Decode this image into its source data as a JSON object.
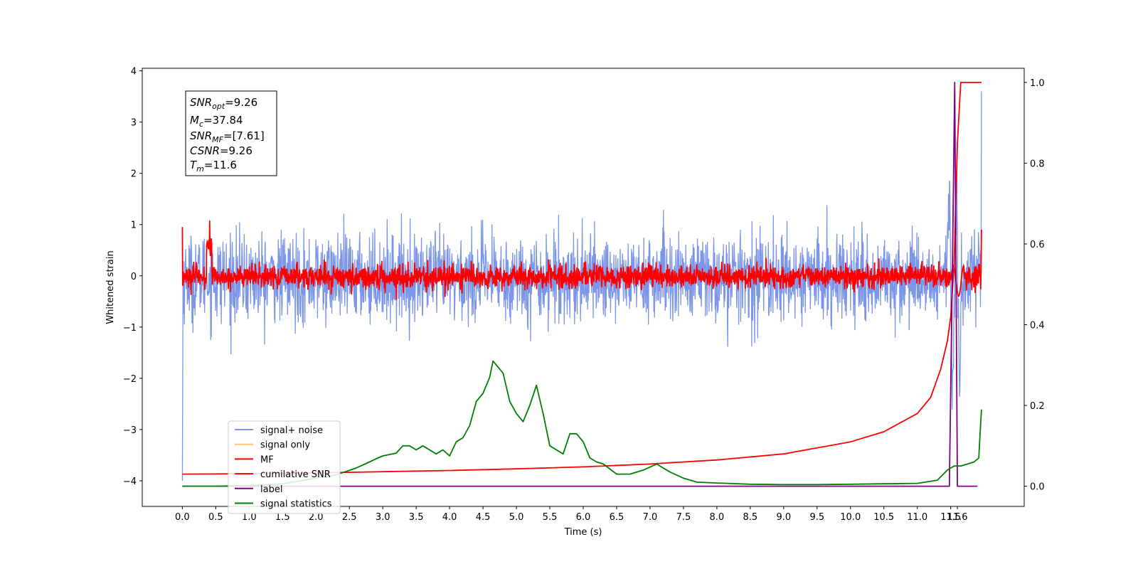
{
  "chart_data": {
    "type": "line",
    "xlabel": "Time (s)",
    "ylabel": "Whitened strain",
    "xlim": [
      -0.6,
      12.6
    ],
    "ylim": [
      -4.5,
      4.05
    ],
    "ylim_right": [
      -0.05,
      1.035
    ],
    "x_ticks": [
      "0.0",
      "0.5",
      "1.0",
      "1.5",
      "2.0",
      "2.5",
      "3.0",
      "3.5",
      "4.0",
      "4.5",
      "5.0",
      "5.5",
      "6.0",
      "6.5",
      "7.0",
      "7.5",
      "8.0",
      "8.5",
      "9.0",
      "9.5",
      "10.0",
      "10.5",
      "11.0",
      "11.5",
      "11.6"
    ],
    "y_ticks_left": [
      "4",
      "3",
      "2",
      "1",
      "0",
      "−1",
      "−2",
      "−3",
      "−4"
    ],
    "y_ticks_right": [
      "1.0",
      "0.8",
      "0.6",
      "0.4",
      "0.2",
      "0.0"
    ],
    "grid": false,
    "legend_position": "lower-left",
    "annotation": {
      "snr_opt": {
        "label": "SNR",
        "sub": "opt",
        "value": "=9.26"
      },
      "mc": {
        "label": "M",
        "sub": "c",
        "value": "=37.84"
      },
      "snr_mf": {
        "label": "SNR",
        "sub": "MF",
        "value": "=[7.61]"
      },
      "csnr": {
        "label": "CSNR",
        "value": "=9.26"
      },
      "tm": {
        "label": "T",
        "sub": "m",
        "value": "=11.6"
      }
    },
    "series": [
      {
        "name": "signal+ noise",
        "color": "#7b95e8",
        "axis": "left",
        "kind": "noise",
        "amplitude_std": 0.42,
        "end_spike": [
          11.55,
          1.8
        ]
      },
      {
        "name": "signal only",
        "color": "#f5c77e",
        "axis": "left",
        "values": []
      },
      {
        "name": "MF",
        "color": "#ff0000",
        "axis": "left",
        "kind": "noise",
        "amplitude_std": 0.11
      },
      {
        "name": "cumilative SNR",
        "color": "#ff0000",
        "axis": "right",
        "x": [
          0.0,
          1.0,
          2.0,
          3.0,
          4.0,
          5.0,
          6.0,
          7.0,
          8.0,
          9.0,
          10.0,
          10.5,
          11.0,
          11.2,
          11.35,
          11.45,
          11.5,
          11.55,
          11.6,
          11.65,
          11.9,
          11.96
        ],
        "y": [
          0.03,
          0.031,
          0.033,
          0.036,
          0.039,
          0.043,
          0.048,
          0.055,
          0.065,
          0.08,
          0.11,
          0.135,
          0.18,
          0.22,
          0.29,
          0.36,
          0.42,
          0.55,
          0.85,
          1.0,
          1.0,
          1.0
        ]
      },
      {
        "name": "label",
        "color": "#800080",
        "axis": "right",
        "x": [
          0.0,
          11.48,
          11.53,
          11.56,
          11.6,
          11.65,
          11.9
        ],
        "y": [
          0.0,
          0.0,
          0.6,
          1.0,
          0.0,
          0.0,
          0.0
        ]
      },
      {
        "name": "signal statistics",
        "color": "#008000",
        "axis": "right",
        "x": [
          0.0,
          0.5,
          1.0,
          1.5,
          2.0,
          2.3,
          2.6,
          2.8,
          2.9,
          3.0,
          3.2,
          3.3,
          3.4,
          3.5,
          3.6,
          3.8,
          3.9,
          4.0,
          4.1,
          4.2,
          4.3,
          4.4,
          4.5,
          4.6,
          4.65,
          4.7,
          4.8,
          4.9,
          5.0,
          5.1,
          5.2,
          5.3,
          5.4,
          5.5,
          5.6,
          5.7,
          5.8,
          5.9,
          6.0,
          6.1,
          6.2,
          6.3,
          6.5,
          6.7,
          6.9,
          7.1,
          7.2,
          7.3,
          7.5,
          7.7,
          8.0,
          8.5,
          9.0,
          9.5,
          10.0,
          10.5,
          11.0,
          11.3,
          11.45,
          11.55,
          11.65,
          11.75,
          11.85,
          11.92,
          11.96
        ],
        "y": [
          0.0,
          0.0,
          0.002,
          0.006,
          0.02,
          0.028,
          0.045,
          0.06,
          0.068,
          0.075,
          0.082,
          0.1,
          0.1,
          0.09,
          0.1,
          0.08,
          0.09,
          0.075,
          0.11,
          0.12,
          0.15,
          0.21,
          0.23,
          0.27,
          0.31,
          0.3,
          0.28,
          0.21,
          0.18,
          0.16,
          0.2,
          0.25,
          0.18,
          0.1,
          0.09,
          0.08,
          0.13,
          0.13,
          0.11,
          0.07,
          0.06,
          0.055,
          0.03,
          0.03,
          0.04,
          0.055,
          0.045,
          0.035,
          0.02,
          0.01,
          0.008,
          0.005,
          0.004,
          0.004,
          0.005,
          0.006,
          0.007,
          0.015,
          0.04,
          0.05,
          0.05,
          0.055,
          0.06,
          0.07,
          0.19
        ]
      }
    ]
  }
}
